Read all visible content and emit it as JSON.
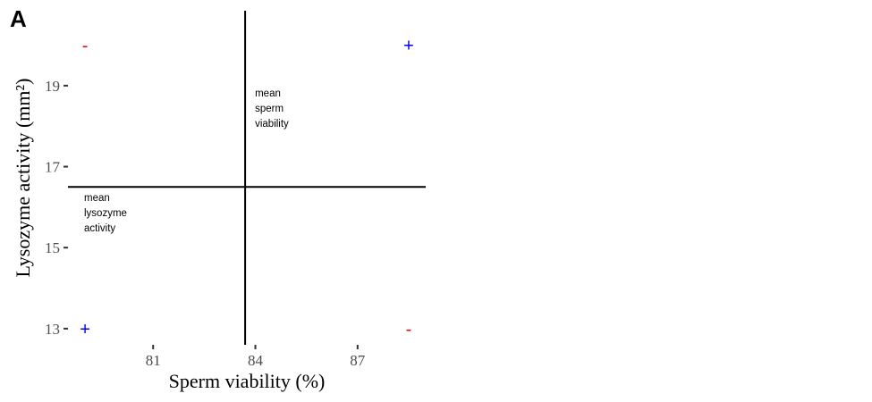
{
  "chart_data": {
    "type": "scatter",
    "panel_label": "A",
    "xlabel": "Sperm viability (%)",
    "ylabel": "Lysozyme activity (mm²)",
    "xlim": [
      78.5,
      89.0
    ],
    "ylim": [
      12.6,
      20.85
    ],
    "x_ticks": [
      81,
      84,
      87
    ],
    "y_ticks": [
      13,
      15,
      17,
      19
    ],
    "grid": false,
    "reference_lines": [
      {
        "orientation": "vertical",
        "value": 83.7,
        "label": [
          "mean",
          "sperm",
          "viability"
        ]
      },
      {
        "orientation": "horizontal",
        "value": 16.5,
        "label": [
          "mean",
          "lysozyme",
          "activity"
        ]
      }
    ],
    "quadrant_signs": [
      {
        "x": 79.0,
        "y": 20.0,
        "text": "-",
        "color": "#ff0000"
      },
      {
        "x": 88.5,
        "y": 20.0,
        "text": "+",
        "color": "#0000ff"
      },
      {
        "x": 79.0,
        "y": 13.0,
        "text": "+",
        "color": "#0000ff"
      },
      {
        "x": 88.5,
        "y": 13.0,
        "text": "-",
        "color": "#ff0000"
      }
    ]
  }
}
